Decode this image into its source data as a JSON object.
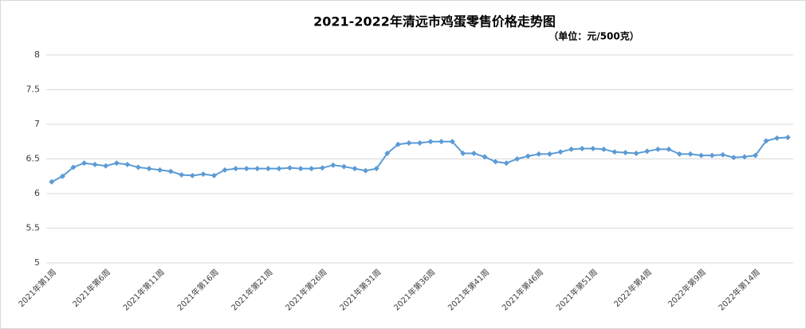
{
  "chart_data": {
    "type": "line",
    "title": "2021-2022年清远市鸡蛋零售价格走势图",
    "subtitle": "（单位：元/500克）",
    "categories": [
      "2021年第1周",
      null,
      null,
      null,
      null,
      "2021年第6周",
      null,
      null,
      null,
      null,
      "2021年第11周",
      null,
      null,
      null,
      null,
      "2021年第16周",
      null,
      null,
      null,
      null,
      "2021年第21周",
      null,
      null,
      null,
      null,
      "2021年第26周",
      null,
      null,
      null,
      null,
      "2021年第31周",
      null,
      null,
      null,
      null,
      "2021年第36周",
      null,
      null,
      null,
      null,
      "2021年第41周",
      null,
      null,
      null,
      null,
      "2021年第46周",
      null,
      null,
      null,
      null,
      "2021年第51周",
      null,
      null,
      null,
      null,
      "2022年第4周",
      null,
      null,
      null,
      null,
      "2022年第9周",
      null,
      null,
      null,
      null,
      "2022年第14周",
      null,
      null,
      null
    ],
    "values": [
      6.17,
      6.25,
      6.38,
      6.44,
      6.42,
      6.4,
      6.44,
      6.42,
      6.38,
      6.36,
      6.34,
      6.32,
      6.27,
      6.26,
      6.28,
      6.26,
      6.34,
      6.36,
      6.36,
      6.36,
      6.36,
      6.36,
      6.37,
      6.36,
      6.36,
      6.37,
      6.41,
      6.39,
      6.36,
      6.33,
      6.36,
      6.58,
      6.71,
      6.73,
      6.73,
      6.75,
      6.75,
      6.75,
      6.58,
      6.58,
      6.53,
      6.46,
      6.44,
      6.5,
      6.54,
      6.57,
      6.57,
      6.6,
      6.64,
      6.65,
      6.65,
      6.64,
      6.6,
      6.59,
      6.58,
      6.61,
      6.64,
      6.64,
      6.57,
      6.57,
      6.55,
      6.55,
      6.56,
      6.52,
      6.53,
      6.55,
      6.76,
      6.8,
      6.81
    ],
    "color": "#5b9bd5",
    "ylim": [
      5,
      8
    ],
    "yticks": [
      5,
      5.5,
      6,
      6.5,
      7,
      7.5,
      8
    ],
    "grid": true
  }
}
